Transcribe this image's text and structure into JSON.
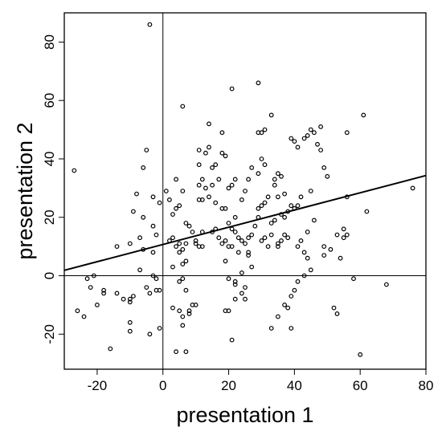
{
  "chart_data": {
    "type": "scatter",
    "xlabel": "presentation 1",
    "ylabel": "presentation 2",
    "xlim": [
      -30,
      80
    ],
    "ylim": [
      -32,
      90
    ],
    "xticks": [
      -20,
      0,
      20,
      40,
      60,
      80
    ],
    "yticks": [
      -20,
      0,
      20,
      40,
      60,
      80
    ],
    "grid": false,
    "reference_lines": {
      "x": 0,
      "y": 0
    },
    "regression_line": {
      "intercept": 10.7,
      "slope": 0.295
    },
    "marker": "open-circle",
    "colors": {
      "points": "#000000",
      "lines": "#000000"
    },
    "series": [
      {
        "points": [
          [
            -4,
            86
          ],
          [
            -27,
            36
          ],
          [
            -5,
            43
          ],
          [
            -6,
            37
          ],
          [
            -8,
            28
          ],
          [
            -3,
            27
          ],
          [
            -1,
            25
          ],
          [
            -9,
            22
          ],
          [
            -6,
            20
          ],
          [
            -3,
            17
          ],
          [
            -2,
            14
          ],
          [
            -7,
            13
          ],
          [
            -10,
            11
          ],
          [
            -14,
            10
          ],
          [
            -6,
            9
          ],
          [
            -3,
            8
          ],
          [
            -21,
            0
          ],
          [
            -23,
            -1
          ],
          [
            -22,
            -4
          ],
          [
            -26,
            -12
          ],
          [
            -24,
            -14
          ],
          [
            -20,
            -10
          ],
          [
            -18,
            -5
          ],
          [
            -18,
            -6
          ],
          [
            -14,
            -6
          ],
          [
            -12,
            -8
          ],
          [
            -10,
            -8
          ],
          [
            -10,
            -9
          ],
          [
            -9,
            -7
          ],
          [
            -10,
            -16
          ],
          [
            -10,
            -19
          ],
          [
            -16,
            -25
          ],
          [
            -4,
            -20
          ],
          [
            -1,
            -18
          ],
          [
            -5,
            -4
          ],
          [
            -4,
            -6
          ],
          [
            -2,
            -5
          ],
          [
            -1,
            -5
          ],
          [
            -2,
            -1
          ],
          [
            -3,
            0
          ],
          [
            -7,
            2
          ],
          [
            1,
            29
          ],
          [
            2,
            26
          ],
          [
            3,
            21
          ],
          [
            3,
            13
          ],
          [
            2,
            12
          ],
          [
            5,
            11
          ],
          [
            4,
            10
          ],
          [
            5,
            8
          ],
          [
            6,
            9
          ],
          [
            7,
            11
          ],
          [
            6,
            4
          ],
          [
            3,
            3
          ],
          [
            7,
            5
          ],
          [
            5,
            -2
          ],
          [
            6,
            -1
          ],
          [
            7,
            -5
          ],
          [
            3,
            -11
          ],
          [
            5,
            -12
          ],
          [
            6,
            -14
          ],
          [
            6,
            -17
          ],
          [
            4,
            -26
          ],
          [
            7,
            -26
          ],
          [
            8,
            -13
          ],
          [
            8,
            -12
          ],
          [
            9,
            -10
          ],
          [
            10,
            -10
          ],
          [
            4,
            23
          ],
          [
            5,
            24
          ],
          [
            4,
            33
          ],
          [
            6,
            58
          ],
          [
            6,
            29
          ],
          [
            7,
            18
          ],
          [
            8,
            17
          ],
          [
            9,
            15
          ],
          [
            10,
            11
          ],
          [
            10,
            12
          ],
          [
            11,
            10
          ],
          [
            12,
            10
          ],
          [
            12,
            15
          ],
          [
            11,
            26
          ],
          [
            12,
            26
          ],
          [
            11,
            31
          ],
          [
            12,
            33
          ],
          [
            11,
            38
          ],
          [
            13,
            42
          ],
          [
            11,
            43
          ],
          [
            14,
            44
          ],
          [
            14,
            52
          ],
          [
            15,
            37
          ],
          [
            16,
            38
          ],
          [
            17,
            33
          ],
          [
            15,
            31
          ],
          [
            13,
            30
          ],
          [
            14,
            27
          ],
          [
            16,
            25
          ],
          [
            18,
            23
          ],
          [
            19,
            23
          ],
          [
            15,
            15
          ],
          [
            16,
            16
          ],
          [
            17,
            13
          ],
          [
            18,
            11
          ],
          [
            20,
            10
          ],
          [
            21,
            10
          ],
          [
            19,
            12
          ],
          [
            19,
            5
          ],
          [
            20,
            -1
          ],
          [
            22,
            -2
          ],
          [
            22,
            -3
          ],
          [
            22,
            -8
          ],
          [
            19,
            -12
          ],
          [
            20,
            -12
          ],
          [
            21,
            -22
          ],
          [
            24,
            -6
          ],
          [
            25,
            -4
          ],
          [
            25,
            -8
          ],
          [
            24,
            1
          ],
          [
            27,
            3
          ],
          [
            26,
            7
          ],
          [
            23,
            8
          ],
          [
            18,
            42
          ],
          [
            19,
            41
          ],
          [
            18,
            49
          ],
          [
            20,
            30
          ],
          [
            21,
            31
          ],
          [
            22,
            33
          ],
          [
            20,
            18
          ],
          [
            22,
            20
          ],
          [
            21,
            16
          ],
          [
            22,
            15
          ],
          [
            23,
            13
          ],
          [
            24,
            12
          ],
          [
            25,
            11
          ],
          [
            26,
            13
          ],
          [
            26,
            8
          ],
          [
            27,
            14
          ],
          [
            28,
            17
          ],
          [
            29,
            20
          ],
          [
            29,
            23
          ],
          [
            30,
            24
          ],
          [
            31,
            25
          ],
          [
            32,
            27
          ],
          [
            30,
            12
          ],
          [
            31,
            13
          ],
          [
            33,
            14
          ],
          [
            32,
            10
          ],
          [
            33,
            18
          ],
          [
            34,
            19
          ],
          [
            35,
            11
          ],
          [
            35,
            10
          ],
          [
            36,
            12
          ],
          [
            37,
            14
          ],
          [
            38,
            13
          ],
          [
            36,
            21
          ],
          [
            37,
            20
          ],
          [
            38,
            22
          ],
          [
            39,
            24
          ],
          [
            40,
            23
          ],
          [
            41,
            24
          ],
          [
            42,
            27
          ],
          [
            21,
            64
          ],
          [
            29,
            66
          ],
          [
            29,
            49
          ],
          [
            30,
            49
          ],
          [
            31,
            50
          ],
          [
            33,
            55
          ],
          [
            30,
            40
          ],
          [
            31,
            38
          ],
          [
            29,
            35
          ],
          [
            27,
            37
          ],
          [
            26,
            33
          ],
          [
            25,
            29
          ],
          [
            24,
            26
          ],
          [
            34,
            33
          ],
          [
            35,
            35
          ],
          [
            36,
            34
          ],
          [
            34,
            31
          ],
          [
            35,
            27
          ],
          [
            37,
            28
          ],
          [
            39,
            47
          ],
          [
            40,
            46
          ],
          [
            41,
            44
          ],
          [
            43,
            47
          ],
          [
            44,
            48
          ],
          [
            45,
            50
          ],
          [
            46,
            49
          ],
          [
            48,
            51
          ],
          [
            48,
            43
          ],
          [
            47,
            45
          ],
          [
            49,
            37
          ],
          [
            50,
            34
          ],
          [
            45,
            29
          ],
          [
            46,
            19
          ],
          [
            44,
            15
          ],
          [
            42,
            12
          ],
          [
            41,
            10
          ],
          [
            43,
            8
          ],
          [
            44,
            6
          ],
          [
            45,
            2
          ],
          [
            43,
            0
          ],
          [
            41,
            -2
          ],
          [
            40,
            -5
          ],
          [
            39,
            -7
          ],
          [
            37,
            -10
          ],
          [
            33,
            -18
          ],
          [
            35,
            -14
          ],
          [
            38,
            -11
          ],
          [
            39,
            -18
          ],
          [
            49,
            7
          ],
          [
            49,
            10
          ],
          [
            51,
            9
          ],
          [
            54,
            6
          ],
          [
            53,
            14
          ],
          [
            55,
            13
          ],
          [
            56,
            14
          ],
          [
            56,
            49
          ],
          [
            56,
            27
          ],
          [
            58,
            -1
          ],
          [
            60,
            -27
          ],
          [
            62,
            22
          ],
          [
            61,
            55
          ],
          [
            68,
            -3
          ],
          [
            76,
            30
          ],
          [
            52,
            -11
          ],
          [
            53,
            -13
          ],
          [
            55,
            16
          ]
        ]
      }
    ]
  }
}
